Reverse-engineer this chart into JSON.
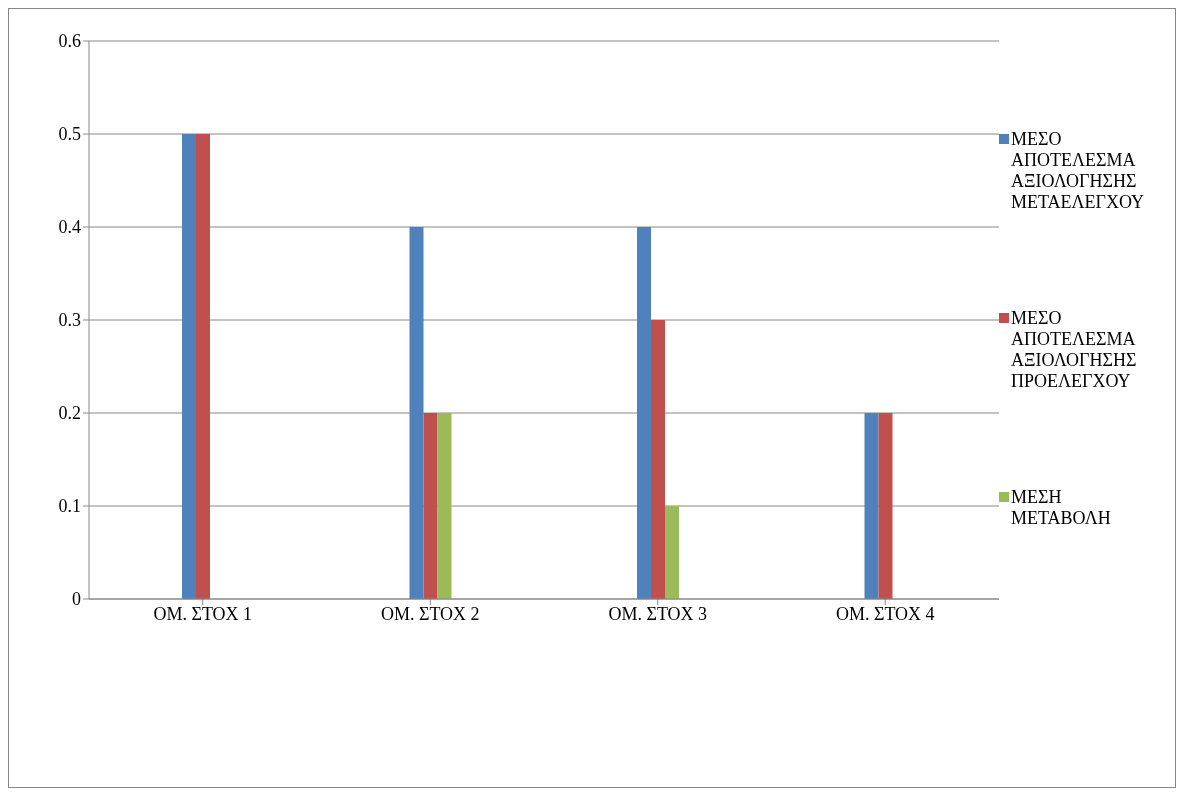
{
  "chart_data": {
    "type": "bar",
    "categories": [
      "ΟΜ. ΣΤΟΧ 1",
      "ΟΜ. ΣΤΟΧ 2",
      "ΟΜ. ΣΤΟΧ 3",
      "ΟΜ. ΣΤΟΧ  4"
    ],
    "series": [
      {
        "name": "ΜΕΣΟ ΑΠΟΤΕΛΕΣΜΑ ΑΞΙΟΛΟΓΗΣΗΣ ΜΕΤΑΕΛΕΓΧΟΥ",
        "color": "#4f81bd",
        "values": [
          0.5,
          0.4,
          0.4,
          0.2
        ]
      },
      {
        "name": "ΜΕΣΟ ΑΠΟΤΕΛΕΣΜΑ ΑΞΙΟΛΟΓΗΣΗΣ ΠΡΟΕΛΕΓΧΟΥ",
        "color": "#c0504d",
        "values": [
          0.5,
          0.2,
          0.3,
          0.2
        ]
      },
      {
        "name": "ΜΕΣΗ ΜΕΤΑΒΟΛΗ",
        "color": "#9bbb59",
        "values": [
          0,
          0.2,
          0.1,
          0
        ]
      }
    ],
    "ylim": [
      0,
      0.6
    ],
    "yticks": [
      0,
      0.1,
      0.2,
      0.3,
      0.4,
      0.5,
      0.6
    ],
    "grid": "y",
    "legend": "right"
  }
}
